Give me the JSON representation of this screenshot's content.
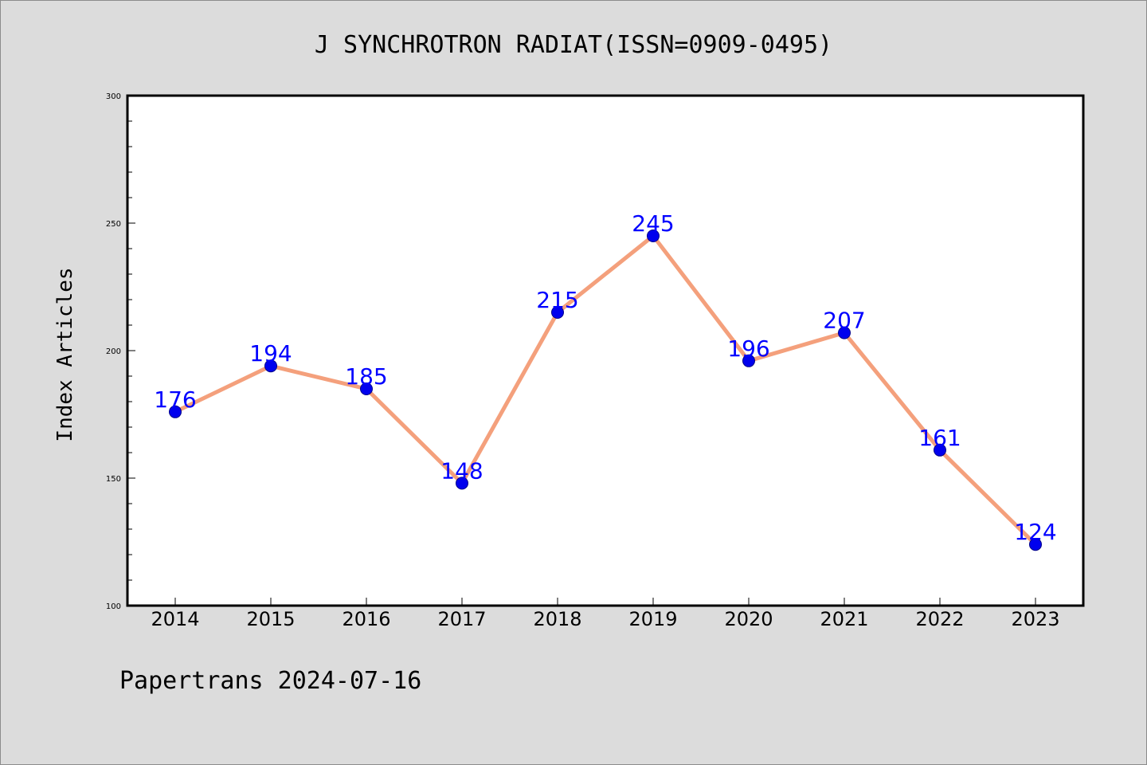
{
  "chart_data": {
    "type": "line",
    "title": "J SYNCHROTRON RADIAT(ISSN=0909-0495)",
    "xlabel": "",
    "ylabel": "Index Articles",
    "categories": [
      "2014",
      "2015",
      "2016",
      "2017",
      "2018",
      "2019",
      "2020",
      "2021",
      "2022",
      "2023"
    ],
    "values": [
      176,
      194,
      185,
      148,
      215,
      245,
      196,
      207,
      161,
      124
    ],
    "ylim": [
      100,
      300
    ],
    "yticks": [
      100,
      150,
      200,
      250,
      300
    ],
    "grid": false,
    "line_color": "#f4a07c",
    "marker_color": "#0000ee",
    "label_color": "#0000ff"
  },
  "footer": {
    "text": "Papertrans 2024-07-16"
  }
}
